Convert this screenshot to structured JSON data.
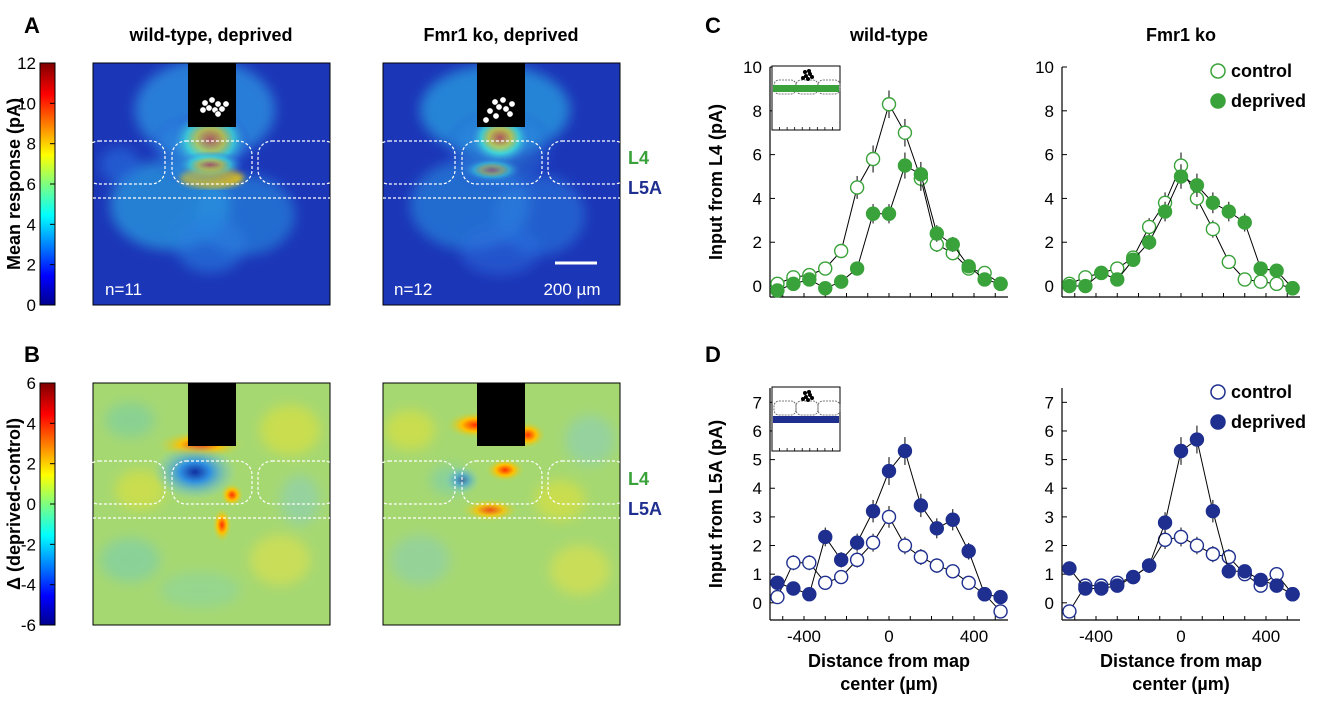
{
  "panels": {
    "A": "A",
    "B": "B",
    "C": "C",
    "D": "D"
  },
  "colors": {
    "green": "#3aa23a",
    "blue": "#1f2f8f",
    "l4": "#3aa23a",
    "l5a": "#1f2f8f"
  },
  "heatmaps": {
    "titles": [
      "wild-type, deprived",
      "Fmr1 ko, deprived"
    ],
    "rowA": {
      "ylabel": "Mean response (pA)",
      "colorbar_ticks": [
        "12",
        "10",
        "8",
        "6",
        "4",
        "2",
        "0"
      ],
      "colorbar_range": [
        0,
        12
      ],
      "n_labels": [
        "n=11",
        "n=12"
      ],
      "scalebar": "200 µm"
    },
    "rowB": {
      "ylabel": "Δ (deprived-control)",
      "colorbar_ticks": [
        "6",
        "4",
        "2",
        "0",
        "-2",
        "-4",
        "-6"
      ],
      "colorbar_range": [
        -6,
        6
      ]
    },
    "layer_labels": [
      "L4",
      "L5A"
    ]
  },
  "chart_data": [
    {
      "type": "line",
      "panel": "C",
      "title": "wild-type",
      "ylabel": "Input from L4 (pA)",
      "xlabel": "",
      "ylim": [
        -0.5,
        10
      ],
      "yticks": [
        0,
        2,
        4,
        6,
        8,
        10
      ],
      "xlim": [
        -560,
        560
      ],
      "x": [
        -525,
        -450,
        -375,
        -300,
        -225,
        -150,
        -75,
        0,
        75,
        150,
        225,
        300,
        375,
        450,
        525
      ],
      "series": [
        {
          "name": "control",
          "marker": "open",
          "values": [
            0.1,
            0.4,
            0.5,
            0.8,
            1.6,
            4.5,
            5.8,
            8.3,
            7.0,
            4.9,
            1.9,
            1.5,
            0.8,
            0.6,
            0.1
          ]
        },
        {
          "name": "deprived",
          "marker": "filled",
          "values": [
            -0.2,
            0.1,
            0.3,
            -0.1,
            0.2,
            0.8,
            3.3,
            3.3,
            5.5,
            5.1,
            2.4,
            1.9,
            0.9,
            0.3,
            0.1
          ]
        }
      ]
    },
    {
      "type": "line",
      "panel": "C",
      "title": "Fmr1 ko",
      "ylabel": "",
      "xlabel": "",
      "ylim": [
        -0.5,
        10
      ],
      "yticks": [
        0,
        2,
        4,
        6,
        8,
        10
      ],
      "xlim": [
        -560,
        560
      ],
      "x": [
        -525,
        -450,
        -375,
        -300,
        -225,
        -150,
        -75,
        0,
        75,
        150,
        225,
        300,
        375,
        450,
        525
      ],
      "legend": [
        "control",
        "deprived"
      ],
      "series": [
        {
          "name": "control",
          "marker": "open",
          "values": [
            0.1,
            0.4,
            0.6,
            0.8,
            1.3,
            2.7,
            3.8,
            5.5,
            4.0,
            2.6,
            1.1,
            0.3,
            0.2,
            0.1,
            -0.1
          ]
        },
        {
          "name": "deprived",
          "marker": "filled",
          "values": [
            0.0,
            0.0,
            0.6,
            0.3,
            1.2,
            2.0,
            3.4,
            5.0,
            4.6,
            3.8,
            3.4,
            2.9,
            0.8,
            0.7,
            -0.1
          ]
        }
      ]
    },
    {
      "type": "line",
      "panel": "D",
      "title": "",
      "ylabel": "Input from L5A (pA)",
      "xlabel": "Distance from map center (µm)",
      "ylim": [
        -0.6,
        7.5
      ],
      "yticks": [
        0,
        1,
        2,
        3,
        4,
        5,
        6,
        7
      ],
      "xlim": [
        -560,
        560
      ],
      "xticks": [
        -400,
        0,
        400
      ],
      "x": [
        -525,
        -450,
        -375,
        -300,
        -225,
        -150,
        -75,
        0,
        75,
        150,
        225,
        300,
        375,
        450,
        525
      ],
      "series": [
        {
          "name": "control",
          "marker": "open",
          "values": [
            0.2,
            1.4,
            1.4,
            0.7,
            0.9,
            1.5,
            2.1,
            3.0,
            2.0,
            1.6,
            1.3,
            1.1,
            0.7,
            0.3,
            -0.3
          ]
        },
        {
          "name": "deprived",
          "marker": "filled",
          "values": [
            0.7,
            0.5,
            0.3,
            2.3,
            1.5,
            2.1,
            3.2,
            4.6,
            5.3,
            3.4,
            2.6,
            2.9,
            1.8,
            0.3,
            0.2
          ]
        }
      ]
    },
    {
      "type": "line",
      "panel": "D",
      "title": "",
      "ylabel": "",
      "xlabel": "Distance from map center (µm)",
      "ylim": [
        -0.6,
        7.5
      ],
      "yticks": [
        0,
        1,
        2,
        3,
        4,
        5,
        6,
        7
      ],
      "xlim": [
        -560,
        560
      ],
      "xticks": [
        -400,
        0,
        400
      ],
      "x": [
        -525,
        -450,
        -375,
        -300,
        -225,
        -150,
        -75,
        0,
        75,
        150,
        225,
        300,
        375,
        450,
        525
      ],
      "legend": [
        "control",
        "deprived"
      ],
      "series": [
        {
          "name": "control",
          "marker": "open",
          "values": [
            -0.3,
            0.6,
            0.6,
            0.7,
            0.9,
            1.3,
            2.2,
            2.3,
            2.0,
            1.7,
            1.6,
            1.0,
            0.6,
            1.0,
            0.3
          ]
        },
        {
          "name": "deprived",
          "marker": "filled",
          "values": [
            1.2,
            0.5,
            0.5,
            0.6,
            0.9,
            1.3,
            2.8,
            5.3,
            5.7,
            3.2,
            1.1,
            1.1,
            0.8,
            0.6,
            0.3
          ]
        }
      ]
    }
  ]
}
